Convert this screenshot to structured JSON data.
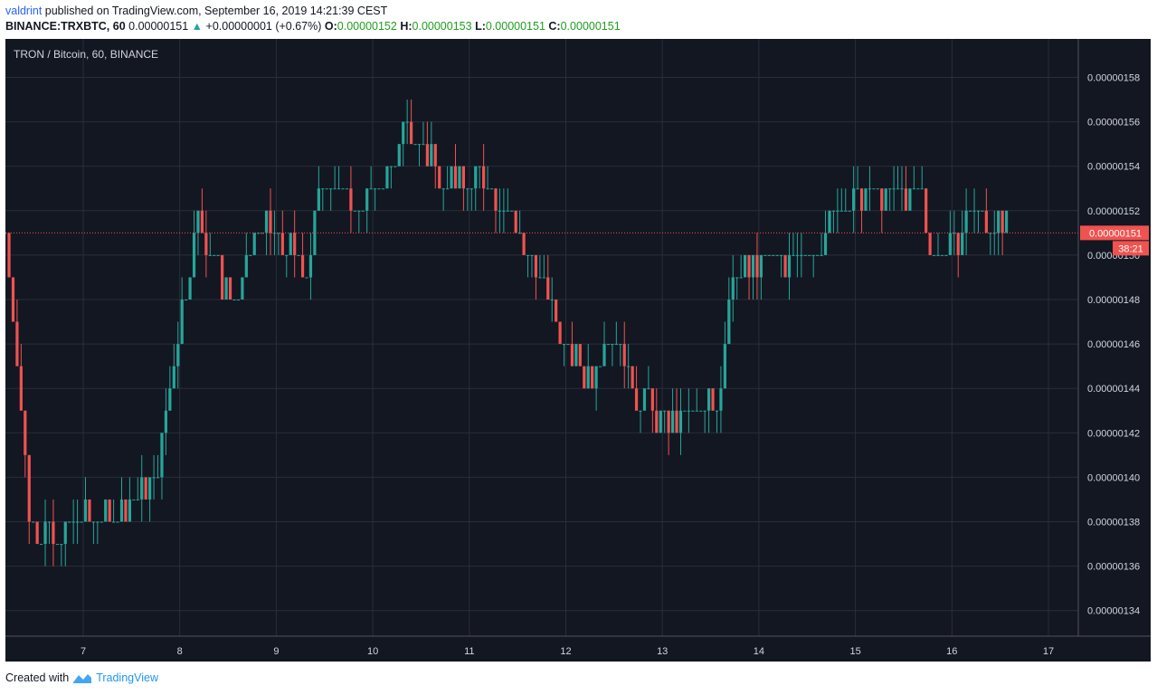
{
  "header": {
    "user": "valdrint",
    "published_text": "published on TradingView.com, September 16, 2019 14:21:39 CEST",
    "symbol": "BINANCE:TRXBTC, 60",
    "last": "0.00000151",
    "change": "+0.00000001 (+0.67%)",
    "o_label": "O:",
    "o_value": "0.00000152",
    "h_label": "H:",
    "h_value": "0.00000153",
    "l_label": "L:",
    "l_value": "0.00000151",
    "c_label": "C:",
    "c_value": "0.00000151"
  },
  "footer": {
    "created_with": "Created with",
    "brand": "TradingView"
  },
  "chart_data": {
    "type": "candlestick",
    "title": "TRON / Bitcoin, 60, BINANCE",
    "y_ticks": [
      "0.00000158",
      "0.00000156",
      "0.00000154",
      "0.00000152",
      "0.00000150",
      "0.00000148",
      "0.00000146",
      "0.00000144",
      "0.00000142",
      "0.00000140",
      "0.00000138",
      "0.00000136",
      "0.00000134"
    ],
    "ylim": [
      1.33e-06,
      1.59e-06
    ],
    "x_ticks": [
      "7",
      "8",
      "9",
      "10",
      "11",
      "12",
      "13",
      "14",
      "15",
      "16",
      "17"
    ],
    "current_price_label": "0.00000151",
    "countdown_label": "38:21",
    "colors": {
      "up": "#26a69a",
      "down": "#ef5350",
      "background": "#131722",
      "grid": "#2a2e39"
    },
    "price_path": [
      {
        "day": 6.2,
        "price": 1.395
      },
      {
        "day": 6.5,
        "price": 1.38
      },
      {
        "day": 6.7,
        "price": 1.37
      },
      {
        "day": 7.0,
        "price": 1.38
      },
      {
        "day": 7.3,
        "price": 1.38
      },
      {
        "day": 7.5,
        "price": 1.39
      },
      {
        "day": 7.75,
        "price": 1.4
      },
      {
        "day": 7.9,
        "price": 1.44
      },
      {
        "day": 8.0,
        "price": 1.47
      },
      {
        "day": 8.2,
        "price": 1.52
      },
      {
        "day": 8.4,
        "price": 1.49
      },
      {
        "day": 8.6,
        "price": 1.48
      },
      {
        "day": 8.8,
        "price": 1.515
      },
      {
        "day": 9.0,
        "price": 1.505
      },
      {
        "day": 9.2,
        "price": 1.5
      },
      {
        "day": 9.3,
        "price": 1.49
      },
      {
        "day": 9.5,
        "price": 1.54
      },
      {
        "day": 9.8,
        "price": 1.52
      },
      {
        "day": 10.1,
        "price": 1.53
      },
      {
        "day": 10.3,
        "price": 1.555
      },
      {
        "day": 10.6,
        "price": 1.545
      },
      {
        "day": 10.9,
        "price": 1.53
      },
      {
        "day": 11.2,
        "price": 1.535
      },
      {
        "day": 11.4,
        "price": 1.52
      },
      {
        "day": 11.6,
        "price": 1.5
      },
      {
        "day": 11.8,
        "price": 1.48
      },
      {
        "day": 12.0,
        "price": 1.46
      },
      {
        "day": 12.2,
        "price": 1.445
      },
      {
        "day": 12.5,
        "price": 1.465
      },
      {
        "day": 12.7,
        "price": 1.44
      },
      {
        "day": 13.0,
        "price": 1.425
      },
      {
        "day": 13.3,
        "price": 1.43
      },
      {
        "day": 13.6,
        "price": 1.435
      },
      {
        "day": 13.7,
        "price": 1.49
      },
      {
        "day": 14.0,
        "price": 1.495
      },
      {
        "day": 14.2,
        "price": 1.5
      },
      {
        "day": 14.5,
        "price": 1.495
      },
      {
        "day": 14.8,
        "price": 1.52
      },
      {
        "day": 15.1,
        "price": 1.525
      },
      {
        "day": 15.4,
        "price": 1.53
      },
      {
        "day": 15.7,
        "price": 1.525
      },
      {
        "day": 15.8,
        "price": 1.5
      },
      {
        "day": 16.0,
        "price": 1.505
      },
      {
        "day": 16.2,
        "price": 1.52
      },
      {
        "day": 16.5,
        "price": 1.515
      },
      {
        "day": 16.58,
        "price": 1.51
      }
    ]
  }
}
